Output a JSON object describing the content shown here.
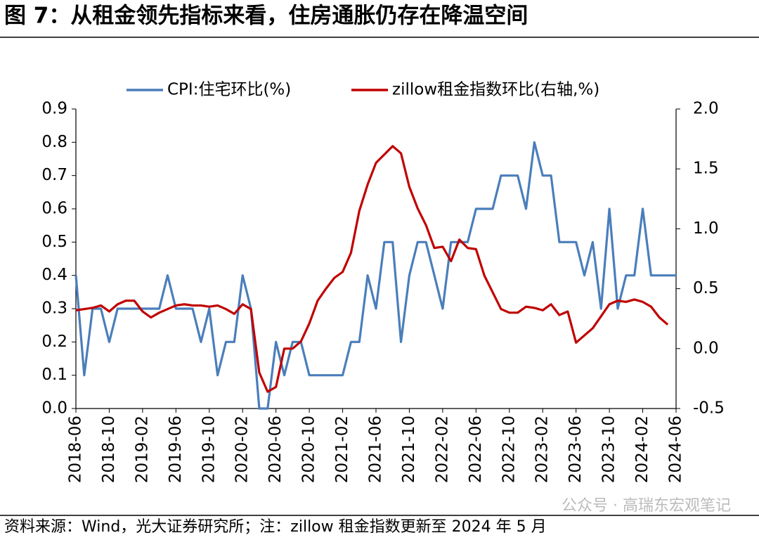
{
  "chart_data": {
    "type": "line",
    "title": "图 7：从租金领先指标来看，住房通胀仍存在降温空间",
    "source": "资料来源：Wind，光大证券研究所；注：zillow 租金指数更新至 2024 年 5 月",
    "watermark": "公众号 · 高瑞东宏观笔记",
    "categories": [
      "2018-06",
      null,
      null,
      null,
      "2018-10",
      null,
      null,
      null,
      "2019-02",
      null,
      null,
      null,
      "2019-06",
      null,
      null,
      null,
      "2019-10",
      null,
      null,
      null,
      "2020-02",
      null,
      null,
      null,
      "2020-06",
      null,
      null,
      null,
      "2020-10",
      null,
      null,
      null,
      "2021-02",
      null,
      null,
      null,
      "2021-06",
      null,
      null,
      null,
      "2021-10",
      null,
      null,
      null,
      "2022-02",
      null,
      null,
      null,
      "2022-06",
      null,
      null,
      null,
      "2022-10",
      null,
      null,
      null,
      "2023-02",
      null,
      null,
      null,
      "2023-06",
      null,
      null,
      null,
      "2023-10",
      null,
      null,
      null,
      "2024-02",
      null,
      null,
      null,
      "2024-06"
    ],
    "series": [
      {
        "name": "CPI:住宅环比(%)",
        "color": "#4a7ebb",
        "values": [
          0.4,
          0.1,
          0.3,
          0.3,
          0.2,
          0.3,
          0.3,
          0.3,
          0.3,
          0.3,
          0.3,
          0.4,
          0.3,
          0.3,
          0.3,
          0.2,
          0.3,
          0.1,
          0.2,
          0.2,
          0.4,
          0.3,
          0.0,
          0.0,
          0.2,
          0.1,
          0.2,
          0.2,
          0.1,
          0.1,
          0.1,
          0.1,
          0.1,
          0.2,
          0.2,
          0.4,
          0.3,
          0.5,
          0.5,
          0.2,
          0.4,
          0.5,
          0.5,
          0.4,
          0.3,
          0.5,
          0.5,
          0.5,
          0.6,
          0.6,
          0.6,
          0.7,
          0.7,
          0.7,
          0.6,
          0.8,
          0.7,
          0.7,
          0.5,
          0.5,
          0.5,
          0.4,
          0.5,
          0.3,
          0.6,
          0.3,
          0.4,
          0.4,
          0.6,
          0.4,
          0.4,
          0.4,
          0.4
        ]
      },
      {
        "name": "zillow租金指数环比(右轴,%)",
        "color": "#c00000",
        "axis": "y2",
        "values": [
          0.32,
          0.33,
          0.34,
          0.36,
          0.31,
          0.37,
          0.4,
          0.4,
          0.31,
          0.26,
          0.3,
          0.33,
          0.36,
          0.37,
          0.36,
          0.36,
          0.35,
          0.36,
          0.33,
          0.29,
          0.37,
          0.33,
          -0.2,
          -0.36,
          -0.32,
          0.0,
          0.0,
          0.06,
          0.21,
          0.4,
          0.5,
          0.59,
          0.64,
          0.8,
          1.15,
          1.37,
          1.55,
          1.62,
          1.69,
          1.63,
          1.35,
          1.17,
          1.03,
          0.84,
          0.85,
          0.73,
          0.91,
          0.84,
          0.83,
          0.61,
          0.47,
          0.33,
          0.3,
          0.3,
          0.35,
          0.34,
          0.32,
          0.37,
          0.28,
          0.31,
          0.05,
          0.11,
          0.17,
          0.27,
          0.37,
          0.4,
          0.39,
          0.41,
          0.39,
          0.35,
          0.26,
          0.2,
          null
        ]
      }
    ],
    "ylim": [
      0,
      0.9
    ],
    "yticks": [
      {
        "value": 0,
        "label": "0.0"
      },
      0.1,
      0.2,
      0.3,
      0.4,
      0.5,
      0.6,
      0.7,
      0.8,
      0.9
    ],
    "y2lim": [
      -0.5,
      2.0
    ],
    "y2ticks": [
      -0.5,
      {
        "value": 0,
        "label": "0.0"
      },
      0.5,
      {
        "value": 1,
        "label": "1.0"
      },
      1.5,
      {
        "value": 2,
        "label": "2.0"
      }
    ],
    "legend": "top"
  }
}
